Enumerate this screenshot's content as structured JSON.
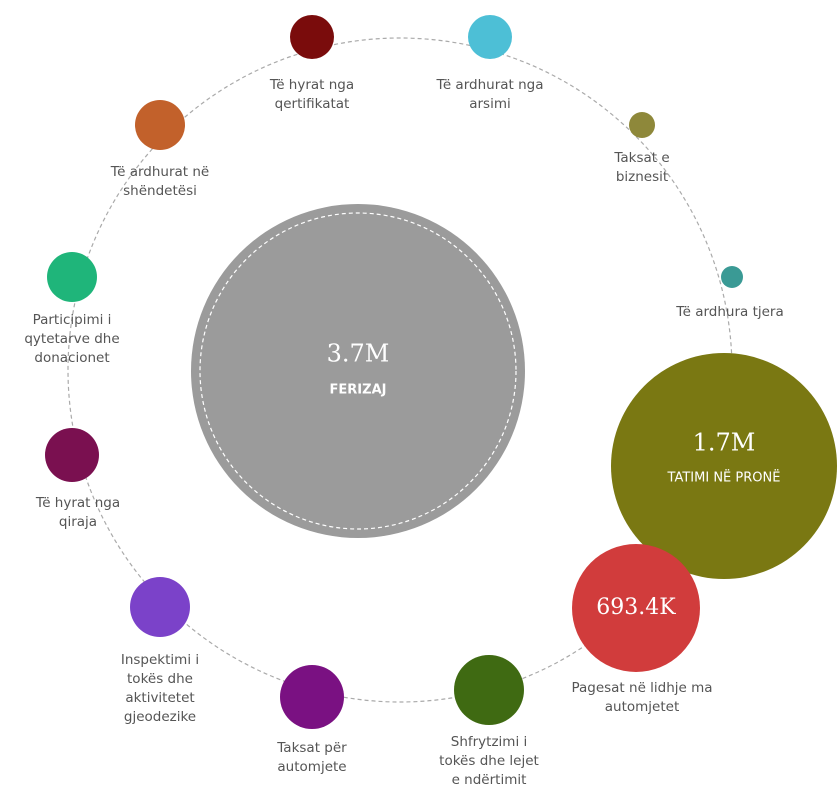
{
  "center": {
    "value": "3.7M",
    "label": "FERIZAJ",
    "color": "#9b9b9b"
  },
  "nodes": [
    {
      "label": [
        "Të hyrat nga",
        "qertifikatat"
      ],
      "color": "#7a0c0c"
    },
    {
      "label": [
        "Të ardhurat nga",
        "arsimi"
      ],
      "color": "#4dbfd6"
    },
    {
      "label": [
        "Taksat e",
        "biznesit"
      ],
      "color": "#8e883a"
    },
    {
      "label": [
        "Të ardhura tjera"
      ],
      "color": "#3a9a95"
    },
    {
      "value": "1.7M",
      "inner_label": "TATIMI NË PRONË",
      "color": "#7a7812"
    },
    {
      "value": "693.4K",
      "label": [
        "Pagesat në lidhje ma",
        "automjetet"
      ],
      "color": "#d13c3c"
    },
    {
      "label": [
        "Shfrytzimi i",
        "tokës dhe lejet",
        "e ndërtimit"
      ],
      "color": "#3f6a12"
    },
    {
      "label": [
        "Taksat për",
        "automjete"
      ],
      "color": "#7a1182"
    },
    {
      "label": [
        "Inspektimi i",
        "tokës dhe",
        "aktivitetet",
        "gjeodezike"
      ],
      "color": "#7b42c9"
    },
    {
      "label": [
        "Të hyrat nga",
        "qiraja"
      ],
      "color": "#7a1050"
    },
    {
      "label": [
        "Participimi i",
        "qytetarve dhe",
        "donacionet"
      ],
      "color": "#1fb57a"
    },
    {
      "label": [
        "Të ardhurat në",
        "shëndetësi"
      ],
      "color": "#c2612b"
    }
  ]
}
